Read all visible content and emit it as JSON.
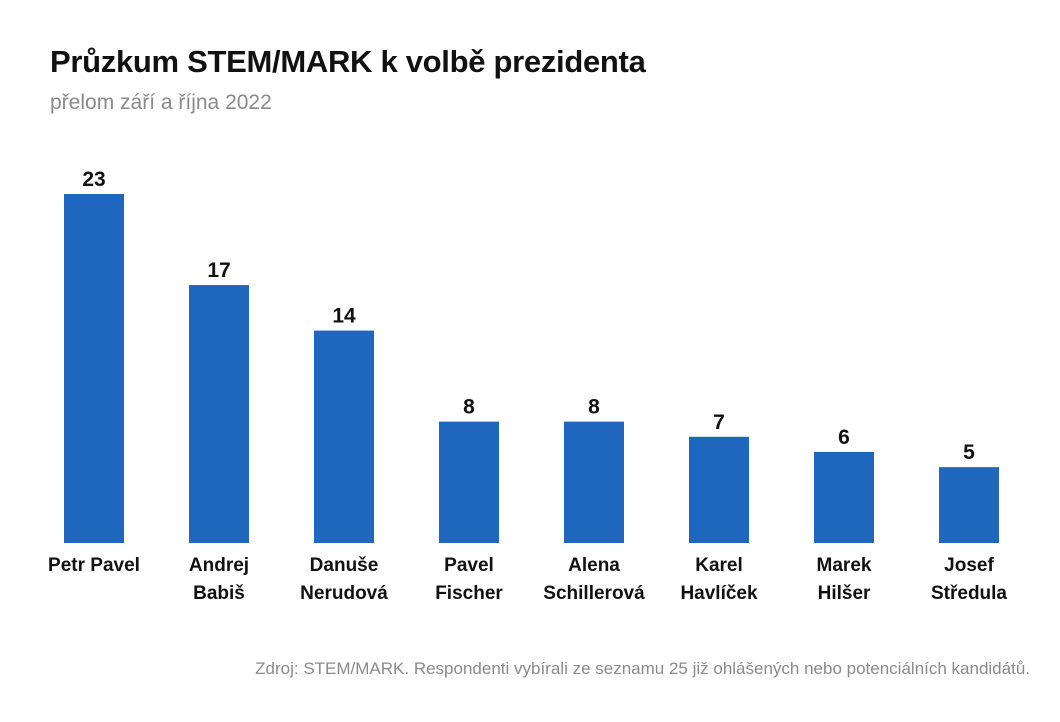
{
  "chart_data": {
    "type": "bar",
    "title": "Průzkum STEM/MARK k volbě prezidenta",
    "subtitle": "přelom září a října 2022",
    "categories": [
      [
        "Petr Pavel"
      ],
      [
        "Andrej",
        "Babiš"
      ],
      [
        "Danuše",
        "Nerudová"
      ],
      [
        "Pavel",
        "Fischer"
      ],
      [
        "Alena",
        "Schillerová"
      ],
      [
        "Karel",
        "Havlíček"
      ],
      [
        "Marek",
        "Hilšer"
      ],
      [
        "Josef",
        "Středula"
      ]
    ],
    "values": [
      23,
      17,
      14,
      8,
      8,
      7,
      6,
      5
    ],
    "xlabel": "",
    "ylabel": "",
    "ylim": [
      0,
      23
    ],
    "grid": false,
    "data_labels": true,
    "bar_color": "#1F67BE",
    "source": "Zdroj: STEM/MARK. Respondenti vybírali ze seznamu 25 již ohlášených nebo potenciálních kandidátů."
  }
}
